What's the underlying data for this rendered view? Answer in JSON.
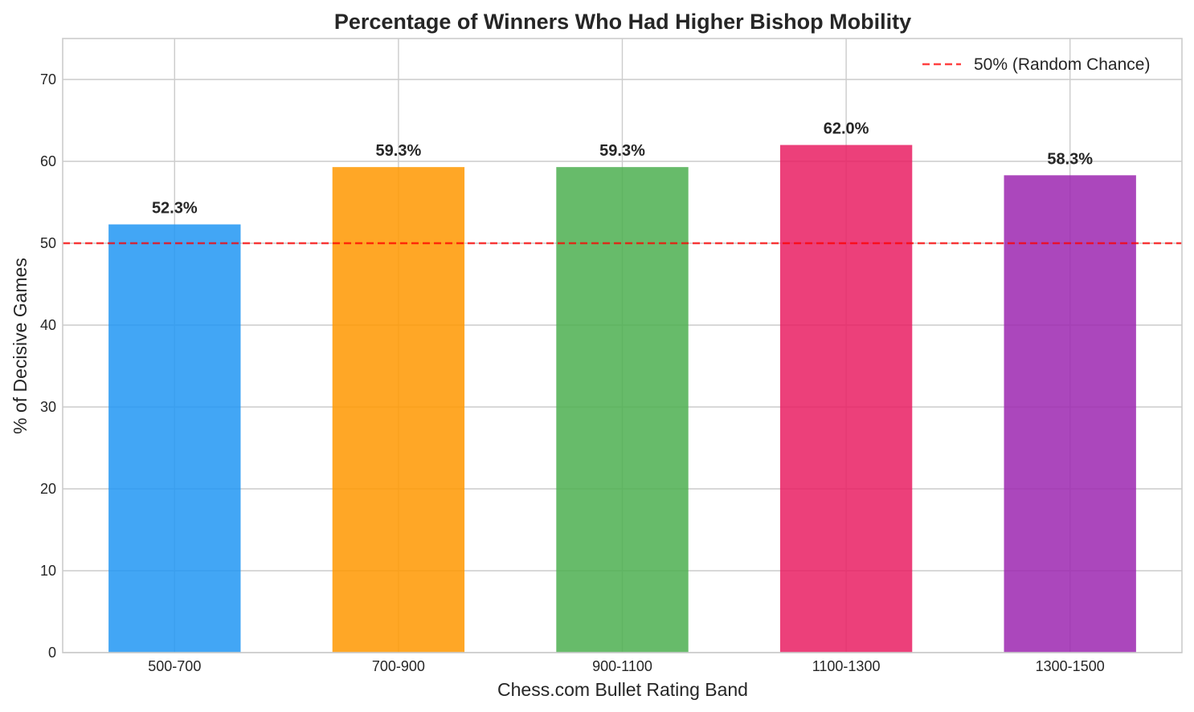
{
  "chart_data": {
    "type": "bar",
    "title": "Percentage of Winners Who Had Higher Bishop Mobility",
    "xlabel": "Chess.com Bullet Rating Band",
    "ylabel": "% of Decisive Games",
    "categories": [
      "500-700",
      "700-900",
      "900-1100",
      "1100-1300",
      "1300-1500"
    ],
    "values": [
      52.3,
      59.3,
      59.3,
      62.0,
      58.3
    ],
    "data_labels": [
      "52.3%",
      "59.3%",
      "59.3%",
      "62.0%",
      "58.3%"
    ],
    "colors": [
      "#2196F3",
      "#FF9800",
      "#4CAF50",
      "#E91E63",
      "#9C27B0"
    ],
    "ylim": [
      0,
      75
    ],
    "yticks": [
      0,
      10,
      20,
      30,
      40,
      50,
      60,
      70
    ],
    "grid": true,
    "reference_line": {
      "value": 50,
      "label": "50% (Random Chance)",
      "color": "#FF0000",
      "style": "dashed"
    },
    "legend": {
      "placement": "top-right",
      "entries": [
        "50% (Random Chance)"
      ]
    }
  }
}
